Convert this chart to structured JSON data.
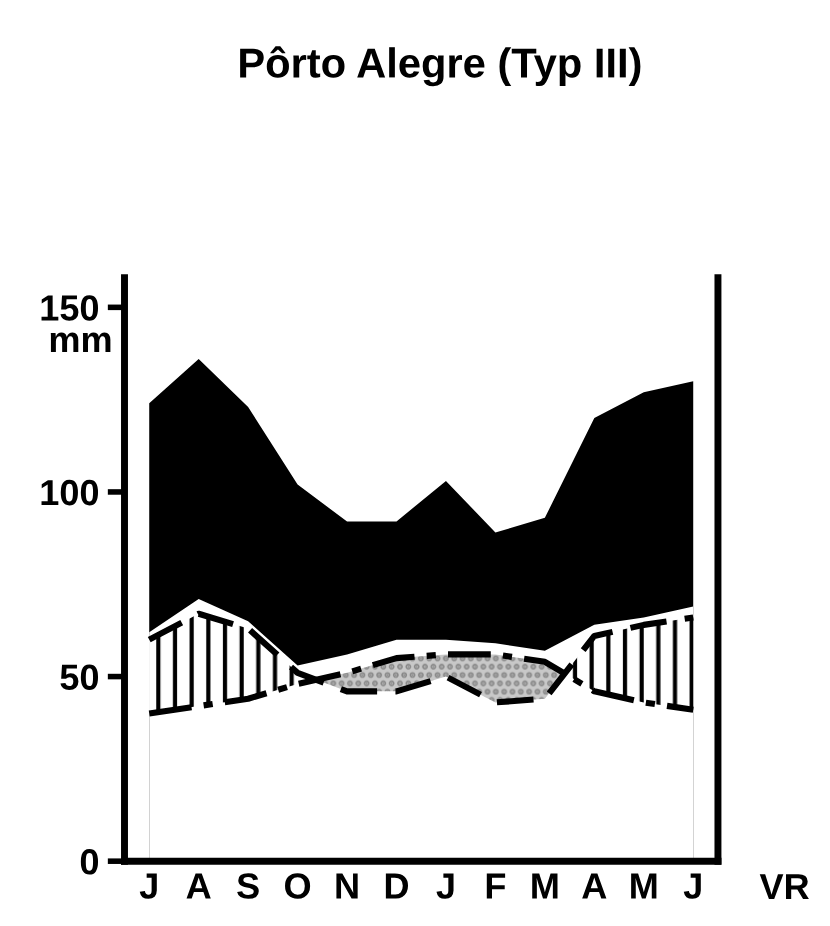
{
  "chart_data": {
    "type": "area",
    "title": "Pôrto Alegre (Typ III)",
    "ylabel": "mm",
    "annotations": [
      "VR"
    ],
    "ylim": [
      0,
      158
    ],
    "yticks": [
      0,
      50,
      100,
      150
    ],
    "grid": false,
    "legend": false,
    "categories": [
      "J",
      "A",
      "S",
      "O",
      "N",
      "D",
      "J",
      "F",
      "M",
      "A",
      "M",
      "J"
    ],
    "series": [
      {
        "color": "#000000",
        "values": [
          124,
          136,
          123,
          102,
          92,
          92,
          103,
          89,
          93,
          120,
          127,
          130
        ]
      },
      {
        "color": "#ffffff",
        "values": [
          62,
          71,
          65,
          53,
          56,
          60,
          60,
          59,
          57,
          64,
          66,
          69
        ]
      },
      {
        "type": "line",
        "color": "#000000",
        "line_style": "dashed",
        "values": [
          60,
          67,
          63,
          51,
          46,
          46,
          50,
          43,
          44,
          61,
          64,
          66
        ]
      },
      {
        "type": "line",
        "color": "#000000",
        "line_style": "dashdot",
        "values": [
          40,
          42,
          44,
          48,
          51,
          55,
          56,
          56,
          54,
          46,
          43,
          41
        ]
      }
    ]
  }
}
